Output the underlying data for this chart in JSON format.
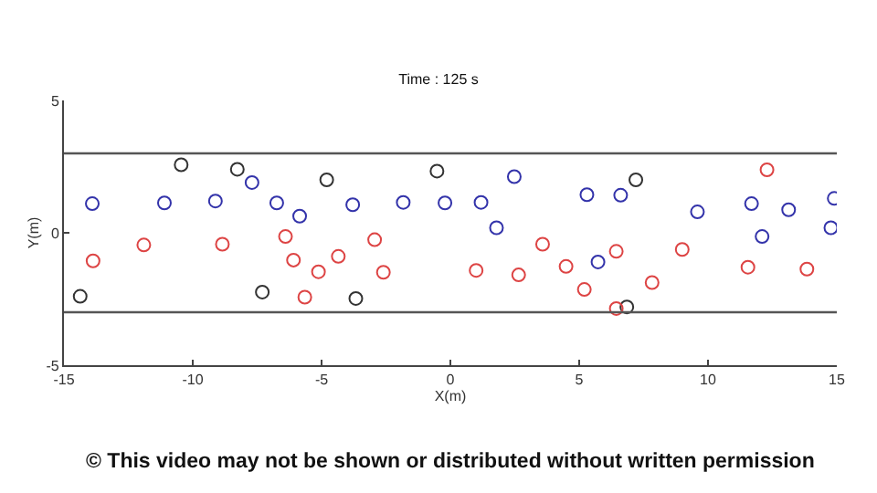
{
  "chart_data": {
    "type": "scatter",
    "title": "Time : 125 s",
    "xlabel": "X(m)",
    "ylabel": "Y(m)",
    "xlim": [
      -15,
      15
    ],
    "xticks": [
      -15,
      -10,
      -5,
      0,
      5,
      10,
      15
    ],
    "ylim": [
      -5,
      5
    ],
    "yticks": [
      -5,
      0,
      5
    ],
    "marker": "circle",
    "series": [
      {
        "color": "#333333",
        "x": [
          -10.45,
          -8.27,
          -4.8,
          -14.37,
          -7.3,
          -3.67,
          -0.52,
          7.2,
          6.85
        ],
        "values": [
          2.57,
          2.4,
          2.0,
          -2.4,
          -2.24,
          -2.48,
          2.33,
          2.0,
          -2.8
        ]
      },
      {
        "color": "#3333aa",
        "x": [
          -13.9,
          -11.1,
          -9.12,
          -7.7,
          -6.74,
          -5.85,
          -3.79,
          -1.83,
          -0.21,
          1.19,
          2.48,
          1.79,
          5.3,
          6.61,
          5.73,
          9.59,
          11.69,
          13.13,
          12.1,
          14.9,
          14.77
        ],
        "values": [
          1.1,
          1.13,
          1.2,
          1.9,
          1.13,
          0.63,
          1.06,
          1.15,
          1.13,
          1.15,
          2.12,
          0.19,
          1.44,
          1.42,
          -1.1,
          0.79,
          1.1,
          0.87,
          -0.14,
          1.3,
          0.19
        ]
      },
      {
        "color": "#dd4444",
        "x": [
          -13.87,
          -11.9,
          -8.85,
          -6.4,
          -6.09,
          -5.12,
          -4.35,
          -5.65,
          -2.94,
          -2.6,
          1.0,
          2.65,
          3.58,
          4.49,
          5.2,
          6.44,
          6.44,
          7.83,
          9.0,
          11.55,
          13.84,
          12.29
        ],
        "values": [
          -1.06,
          -0.46,
          -0.43,
          -0.14,
          -1.03,
          -1.47,
          -0.89,
          -2.43,
          -0.26,
          -1.49,
          -1.42,
          -1.59,
          -0.43,
          -1.27,
          -2.14,
          -0.7,
          -2.86,
          -1.88,
          -0.63,
          -1.3,
          -1.37,
          2.38
        ]
      }
    ],
    "ref_lines": [
      {
        "axis": "y",
        "value": 3,
        "color": "#555555"
      },
      {
        "axis": "y",
        "value": -3,
        "color": "#555555"
      }
    ],
    "annotations": [
      "© This video may not be shown or distributed without written permission"
    ]
  }
}
